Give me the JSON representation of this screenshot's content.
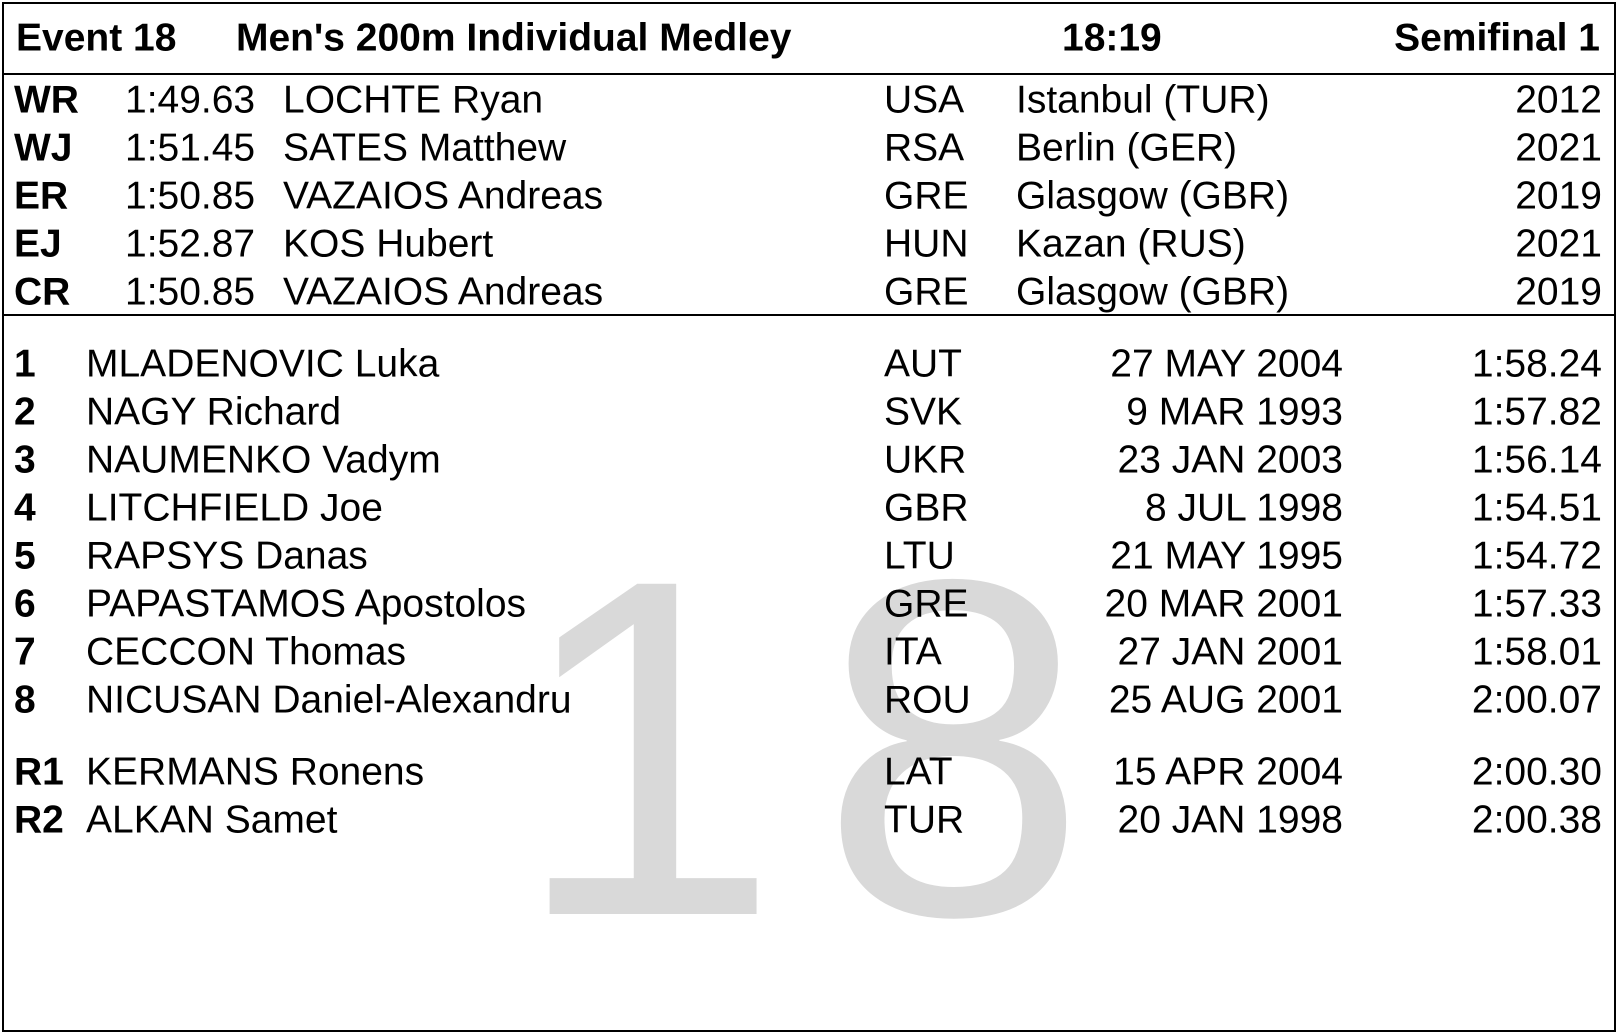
{
  "header": {
    "event": "Event 18",
    "title": "Men's 200m Individual Medley",
    "time": "18:19",
    "heat": "Semifinal 1"
  },
  "records": [
    [
      "WR",
      "1:49.63",
      "LOCHTE Ryan",
      "USA",
      "Istanbul (TUR)",
      "2012"
    ],
    [
      "WJ",
      "1:51.45",
      "SATES Matthew",
      "RSA",
      "Berlin (GER)",
      "2021"
    ],
    [
      "ER",
      "1:50.85",
      "VAZAIOS Andreas",
      "GRE",
      "Glasgow (GBR)",
      "2019"
    ],
    [
      "EJ",
      "1:52.87",
      "KOS Hubert",
      "HUN",
      "Kazan (RUS)",
      "2021"
    ],
    [
      "CR",
      "1:50.85",
      "VAZAIOS Andreas",
      "GRE",
      "Glasgow (GBR)",
      "2019"
    ]
  ],
  "entries": [
    [
      "1",
      "MLADENOVIC Luka",
      "AUT",
      "27 MAY 2004",
      "1:58.24"
    ],
    [
      "2",
      "NAGY Richard",
      "SVK",
      "9 MAR 1993",
      "1:57.82"
    ],
    [
      "3",
      "NAUMENKO Vadym",
      "UKR",
      "23 JAN 2003",
      "1:56.14"
    ],
    [
      "4",
      "LITCHFIELD Joe",
      "GBR",
      "8 JUL 1998",
      "1:54.51"
    ],
    [
      "5",
      "RAPSYS Danas",
      "LTU",
      "21 MAY 1995",
      "1:54.72"
    ],
    [
      "6",
      "PAPASTAMOS Apostolos",
      "GRE",
      "20 MAR 2001",
      "1:57.33"
    ],
    [
      "7",
      "CECCON Thomas",
      "ITA",
      "27 JAN 2001",
      "1:58.01"
    ],
    [
      "8",
      "NICUSAN Daniel-Alexandru",
      "ROU",
      "25 AUG 2001",
      "2:00.07"
    ]
  ],
  "reserves": [
    [
      "R1",
      "KERMANS Ronens",
      "LAT",
      "15 APR 2004",
      "2:00.30"
    ],
    [
      "R2",
      "ALKAN Samet",
      "TUR",
      "20 JAN 1998",
      "2:00.38"
    ]
  ],
  "watermark": "18"
}
